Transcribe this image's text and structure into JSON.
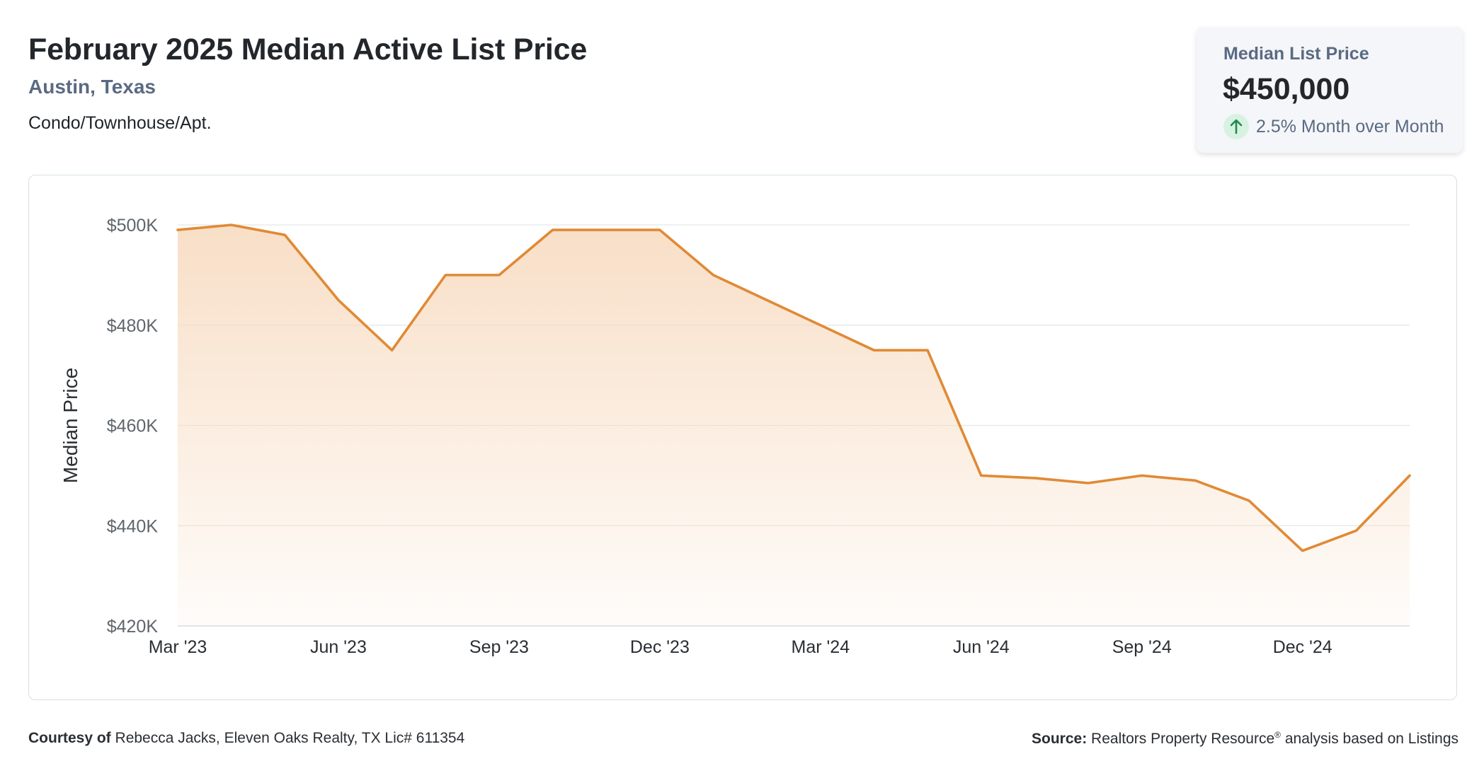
{
  "header": {
    "title": "February 2025 Median Active List Price",
    "location": "Austin, Texas",
    "property_type": "Condo/Townhouse/Apt."
  },
  "kpi": {
    "label": "Median List Price",
    "value": "$450,000",
    "change": "2.5% Month over Month",
    "arrow_icon": "arrow-up-icon",
    "change_color": "#1e8a4c"
  },
  "footer": {
    "courtesy_label": "Courtesy of",
    "courtesy_text": "Rebecca Jacks, Eleven Oaks Realty, TX Lic# 611354",
    "source_label": "Source:",
    "source_text_pre": "Realtors Property Resource",
    "source_registered": "®",
    "source_text_post": "analysis based on Listings"
  },
  "chart_data": {
    "type": "area",
    "ylabel": "Median Price",
    "ylim": [
      420000,
      500000
    ],
    "y_ticks": [
      500000,
      480000,
      460000,
      440000,
      420000
    ],
    "y_tick_labels": [
      "$500K",
      "$480K",
      "$460K",
      "$440K",
      "$420K"
    ],
    "x_tick_labels": [
      "Mar '23",
      "Jun '23",
      "Sep '23",
      "Dec '23",
      "Mar '24",
      "Jun '24",
      "Sep '24",
      "Dec '24"
    ],
    "x_tick_indices": [
      0,
      3,
      6,
      9,
      12,
      15,
      18,
      21
    ],
    "x": [
      "2023-03",
      "2023-04",
      "2023-05",
      "2023-06",
      "2023-07",
      "2023-08",
      "2023-09",
      "2023-10",
      "2023-11",
      "2023-12",
      "2024-01",
      "2024-02",
      "2024-03",
      "2024-04",
      "2024-05",
      "2024-06",
      "2024-07",
      "2024-08",
      "2024-09",
      "2024-10",
      "2024-11",
      "2024-12",
      "2025-01",
      "2025-02"
    ],
    "values": [
      499000,
      500000,
      498000,
      485000,
      475000,
      490000,
      490000,
      499000,
      499000,
      499000,
      490000,
      485000,
      480000,
      475000,
      475000,
      450000,
      449500,
      448500,
      450000,
      449000,
      445000,
      435000,
      439000,
      450000
    ],
    "grid": true,
    "line_color": "#e08a35",
    "fill_color": "#f7d9bd"
  }
}
